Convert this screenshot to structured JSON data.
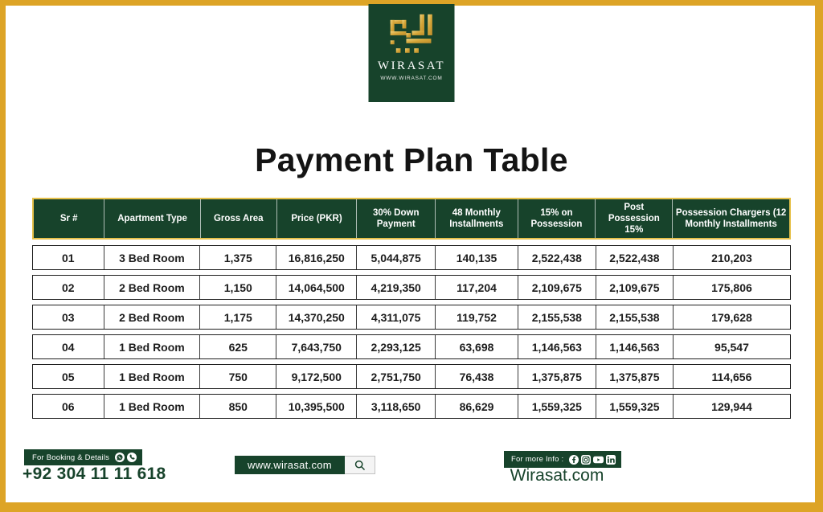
{
  "brand": {
    "name": "WIRASAT",
    "website_small": "WWW.WIRASAT.COM",
    "colors": {
      "green": "#17432B",
      "gold": "#DDA426",
      "gold_light": "#E6C14B"
    }
  },
  "title": "Payment Plan Table",
  "table": {
    "headers": [
      "Sr #",
      "Apartment Type",
      "Gross Area",
      "Price (PKR)",
      "30% Down Payment",
      "48 Monthly Installments",
      "15% on Possession",
      "Post Possession 15%",
      "Possession Chargers (12 Monthly Installments"
    ],
    "rows": [
      [
        "01",
        "3 Bed Room",
        "1,375",
        "16,816,250",
        "5,044,875",
        "140,135",
        "2,522,438",
        "2,522,438",
        "210,203"
      ],
      [
        "02",
        "2 Bed Room",
        "1,150",
        "14,064,500",
        "4,219,350",
        "117,204",
        "2,109,675",
        "2,109,675",
        "175,806"
      ],
      [
        "03",
        "2 Bed Room",
        "1,175",
        "14,370,250",
        "4,311,075",
        "119,752",
        "2,155,538",
        "2,155,538",
        "179,628"
      ],
      [
        "04",
        "1 Bed Room",
        "625",
        "7,643,750",
        "2,293,125",
        "63,698",
        "1,146,563",
        "1,146,563",
        "95,547"
      ],
      [
        "05",
        "1 Bed Room",
        "750",
        "9,172,500",
        "2,751,750",
        "76,438",
        "1,375,875",
        "1,375,875",
        "114,656"
      ],
      [
        "06",
        "1 Bed Room",
        "850",
        "10,395,500",
        "3,118,650",
        "86,629",
        "1,559,325",
        "1,559,325",
        "129,944"
      ]
    ]
  },
  "footer": {
    "booking": {
      "label": "For Booking & Details",
      "phone": "+92 304 11 11 618",
      "icons": [
        "whatsapp-icon",
        "phone-icon"
      ]
    },
    "website_bar": {
      "url": "www.wirasat.com",
      "icon": "search-icon"
    },
    "info": {
      "label": "For more Info :",
      "icons": [
        "facebook-icon",
        "instagram-icon",
        "youtube-icon",
        "linkedin-icon"
      ],
      "site": "Wirasat.com"
    }
  }
}
